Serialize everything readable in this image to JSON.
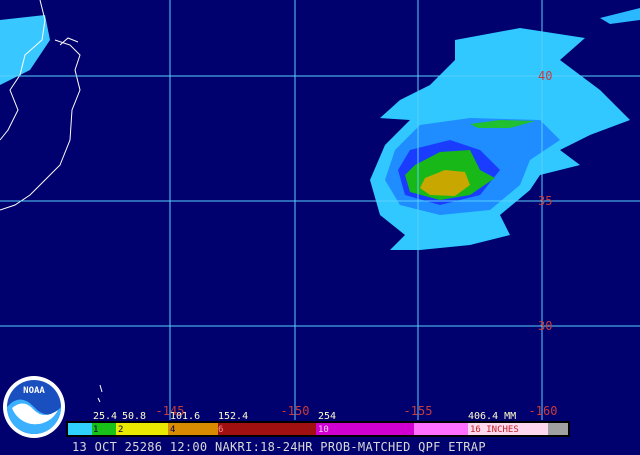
{
  "lat_labels": [
    "40",
    "35",
    "30"
  ],
  "lon_labels": [
    "-145",
    "-150",
    "-155",
    "-160"
  ],
  "legend": {
    "mm": [
      "25.4",
      "50.8",
      "101.6",
      "152.4",
      "254",
      "406.4 MM"
    ],
    "inches": [
      "1",
      "2",
      "4",
      "6",
      "10",
      "16 INCHES"
    ]
  },
  "logo": "NOAA",
  "footer": "13 OCT 25286 12:00 NAKRI:18-24HR PROB-MATCHED QPF ETRAP"
}
